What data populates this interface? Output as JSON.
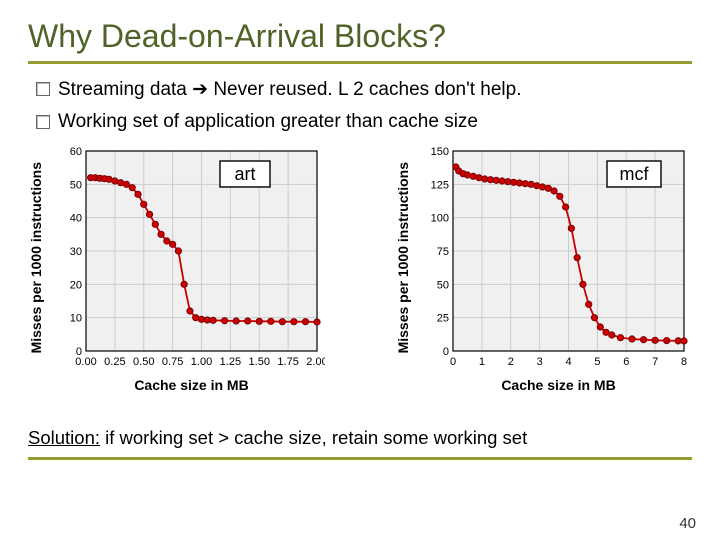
{
  "title": "Why Dead-on-Arrival Blocks?",
  "bullets": [
    "Streaming data ➔ Never reused. L 2 caches don't help.",
    "Working set of application greater than cache size"
  ],
  "ylabel": "Misses per 1000 instructions",
  "xlabel": "Cache size in MB",
  "chart_left": {
    "annot": "art",
    "bg": "#ffffff",
    "plotbg": "#f0f0f0",
    "grid": "#cccccc",
    "axis": "#000000",
    "line": "#cc0000",
    "marker_fill": "#cc0000",
    "marker_stroke": "#660000",
    "marker_r": 3.2,
    "xlim": [
      0,
      2.0
    ],
    "xtick_step": 0.25,
    "ylim": [
      0,
      60
    ],
    "ytick_step": 10,
    "points": [
      [
        0.04,
        52
      ],
      [
        0.08,
        52
      ],
      [
        0.12,
        51.8
      ],
      [
        0.16,
        51.7
      ],
      [
        0.2,
        51.5
      ],
      [
        0.25,
        51
      ],
      [
        0.3,
        50.5
      ],
      [
        0.35,
        50
      ],
      [
        0.4,
        49
      ],
      [
        0.45,
        47
      ],
      [
        0.5,
        44
      ],
      [
        0.55,
        41
      ],
      [
        0.6,
        38
      ],
      [
        0.65,
        35
      ],
      [
        0.7,
        33
      ],
      [
        0.75,
        32
      ],
      [
        0.8,
        30
      ],
      [
        0.85,
        20
      ],
      [
        0.9,
        12
      ],
      [
        0.95,
        10
      ],
      [
        1.0,
        9.5
      ],
      [
        1.05,
        9.3
      ],
      [
        1.1,
        9.2
      ],
      [
        1.2,
        9.1
      ],
      [
        1.3,
        9.0
      ],
      [
        1.4,
        9.0
      ],
      [
        1.5,
        8.9
      ],
      [
        1.6,
        8.9
      ],
      [
        1.7,
        8.8
      ],
      [
        1.8,
        8.8
      ],
      [
        1.9,
        8.8
      ],
      [
        2.0,
        8.7
      ]
    ]
  },
  "chart_right": {
    "annot": "mcf",
    "bg": "#ffffff",
    "plotbg": "#f0f0f0",
    "grid": "#cccccc",
    "axis": "#000000",
    "line": "#cc0000",
    "marker_fill": "#cc0000",
    "marker_stroke": "#660000",
    "marker_r": 3.2,
    "xlim": [
      0,
      8
    ],
    "xtick_step": 1,
    "ylim": [
      0,
      150
    ],
    "ytick_step": 25,
    "points": [
      [
        0.1,
        138
      ],
      [
        0.2,
        135
      ],
      [
        0.35,
        133
      ],
      [
        0.5,
        132
      ],
      [
        0.7,
        131
      ],
      [
        0.9,
        130
      ],
      [
        1.1,
        129
      ],
      [
        1.3,
        128.5
      ],
      [
        1.5,
        128
      ],
      [
        1.7,
        127.5
      ],
      [
        1.9,
        127
      ],
      [
        2.1,
        126.5
      ],
      [
        2.3,
        126
      ],
      [
        2.5,
        125.5
      ],
      [
        2.7,
        125
      ],
      [
        2.9,
        124
      ],
      [
        3.1,
        123
      ],
      [
        3.3,
        122
      ],
      [
        3.5,
        120
      ],
      [
        3.7,
        116
      ],
      [
        3.9,
        108
      ],
      [
        4.1,
        92
      ],
      [
        4.3,
        70
      ],
      [
        4.5,
        50
      ],
      [
        4.7,
        35
      ],
      [
        4.9,
        25
      ],
      [
        5.1,
        18
      ],
      [
        5.3,
        14
      ],
      [
        5.5,
        12
      ],
      [
        5.8,
        10
      ],
      [
        6.2,
        9
      ],
      [
        6.6,
        8.5
      ],
      [
        7.0,
        8
      ],
      [
        7.4,
        7.8
      ],
      [
        7.8,
        7.6
      ],
      [
        8.0,
        7.5
      ]
    ]
  },
  "solution_label": "Solution:",
  "solution_text": " if working set > cache size, retain some working set",
  "pagenum": "40",
  "tick_font_size": 11,
  "tick_color": "#000000"
}
